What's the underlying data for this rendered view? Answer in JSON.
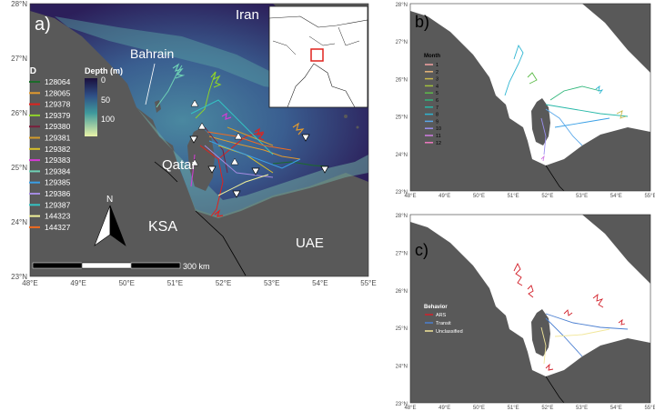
{
  "panel_a": {
    "label": "a)",
    "x_ticks": [
      "48°E",
      "49°E",
      "50°E",
      "51°E",
      "52°E",
      "53°E",
      "54°E",
      "55°E"
    ],
    "y_ticks": [
      "28°N",
      "27°N",
      "26°N",
      "25°N",
      "24°N",
      "23°N"
    ],
    "places": {
      "iran": "Iran",
      "bahrain": "Bahrain",
      "qatar": "Qatar",
      "ksa": "KSA",
      "uae": "UAE"
    },
    "depth_legend": {
      "title": "Depth (m)",
      "ticks": [
        "0",
        "50",
        "100"
      ]
    },
    "id_legend": {
      "title": "ID",
      "items": [
        {
          "label": "128064",
          "color": "#1b6b2a"
        },
        {
          "label": "128065",
          "color": "#e29a2e"
        },
        {
          "label": "129378",
          "color": "#e0221d"
        },
        {
          "label": "129379",
          "color": "#8fd22b"
        },
        {
          "label": "129380",
          "color": "#7a1f3c"
        },
        {
          "label": "129381",
          "color": "#d39b2a"
        },
        {
          "label": "129382",
          "color": "#d9c12a"
        },
        {
          "label": "129383",
          "color": "#d63bd6"
        },
        {
          "label": "129384",
          "color": "#6fd2b6"
        },
        {
          "label": "129385",
          "color": "#3aa0e6"
        },
        {
          "label": "129386",
          "color": "#a48be0"
        },
        {
          "label": "129387",
          "color": "#34c3c3"
        },
        {
          "label": "144323",
          "color": "#f2f29a"
        },
        {
          "label": "144327",
          "color": "#f06b1f"
        }
      ]
    },
    "north_label": "N",
    "scale_label": "300 km"
  },
  "panel_b": {
    "label": "b)",
    "x_ticks": [
      "48°E",
      "49°E",
      "50°E",
      "51°E",
      "52°E",
      "53°E",
      "54°E",
      "55°E"
    ],
    "y_ticks": [
      "28°N",
      "27°N",
      "26°N",
      "25°N",
      "24°N",
      "23°N"
    ],
    "legend_title": "Month",
    "months": [
      {
        "label": "1",
        "color": "#f4a3a3"
      },
      {
        "label": "2",
        "color": "#e8b57a"
      },
      {
        "label": "3",
        "color": "#c9b84a"
      },
      {
        "label": "4",
        "color": "#a3c23d"
      },
      {
        "label": "5",
        "color": "#5dbb4a"
      },
      {
        "label": "6",
        "color": "#2fb67a"
      },
      {
        "label": "7",
        "color": "#27b8a8"
      },
      {
        "label": "8",
        "color": "#2db5d2"
      },
      {
        "label": "9",
        "color": "#5aa8ea"
      },
      {
        "label": "10",
        "color": "#9b8ff0"
      },
      {
        "label": "11",
        "color": "#d27ee4"
      },
      {
        "label": "12",
        "color": "#f07ac2"
      }
    ]
  },
  "panel_c": {
    "label": "c)",
    "x_ticks": [
      "48°E",
      "49°E",
      "50°E",
      "51°E",
      "52°E",
      "53°E",
      "54°E",
      "55°E"
    ],
    "y_ticks": [
      "28°N",
      "27°N",
      "26°N",
      "25°N",
      "24°N",
      "23°N"
    ],
    "legend_title": "Behavior",
    "behaviors": [
      {
        "label": "ARS",
        "color": "#d2202a"
      },
      {
        "label": "Transit",
        "color": "#4b7fd1"
      },
      {
        "label": "Unclassified",
        "color": "#f2e79a"
      }
    ]
  },
  "colors": {
    "land": "#595959",
    "deep": "#2e1a4f",
    "shallow": "#e8f2a8"
  }
}
